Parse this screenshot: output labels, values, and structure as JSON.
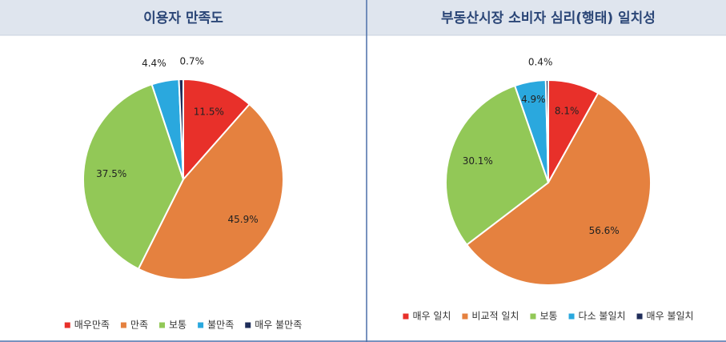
{
  "chart_data": [
    {
      "type": "pie",
      "title": "이용자 만족도",
      "categories": [
        "매우만족",
        "만족",
        "보통",
        "불만족",
        "매우 불만족"
      ],
      "values": [
        11.5,
        45.9,
        37.5,
        4.4,
        0.7
      ],
      "value_labels": [
        "11.5%",
        "45.9%",
        "37.5%",
        "4.4%",
        "0.7%"
      ],
      "colors": [
        "#e8302a",
        "#e5813f",
        "#92c857",
        "#2aa8de",
        "#1f2d5a"
      ],
      "legend": "bottom"
    },
    {
      "type": "pie",
      "title": "부동산시장 소비자 심리(행태) 일치성",
      "categories": [
        "매우 일치",
        "비교적 일치",
        "보통",
        "다소 불일치",
        "매우 불일치"
      ],
      "values": [
        8.1,
        56.6,
        30.1,
        4.9,
        0.4
      ],
      "value_labels": [
        "8.1%",
        "56.6%",
        "30.1%",
        "4.9%",
        "0.4%"
      ],
      "colors": [
        "#e8302a",
        "#e5813f",
        "#92c857",
        "#2aa8de",
        "#1f2d5a"
      ],
      "legend": "bottom"
    }
  ]
}
